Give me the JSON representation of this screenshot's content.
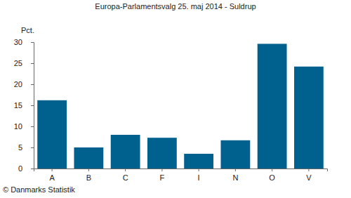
{
  "chart_data": {
    "type": "bar",
    "title": "Europa-Parlamentsvalg 25. maj 2014 - Suldrup",
    "ylabel": "Pct.",
    "annotations": [
      "© Danmarks Statistik"
    ],
    "categories": [
      "A",
      "B",
      "C",
      "F",
      "I",
      "N",
      "O",
      "V"
    ],
    "values": [
      16.2,
      5.0,
      8.0,
      7.3,
      3.5,
      6.7,
      29.6,
      24.2
    ],
    "color": "#00618f",
    "ylim": [
      0,
      30
    ],
    "yticks": [
      0,
      5,
      10,
      15,
      20,
      25,
      30
    ],
    "grid": false
  }
}
